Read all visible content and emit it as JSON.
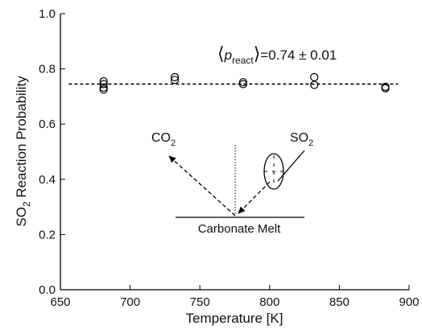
{
  "chart_data": {
    "type": "scatter",
    "x_label": "Temperature [K]",
    "y_label": {
      "prefix": "SO",
      "subscript": "2",
      "text": " Reaction Probability"
    },
    "xlim": [
      650,
      900
    ],
    "xticks": [
      650,
      700,
      750,
      800,
      850,
      900
    ],
    "ylim": [
      0,
      1
    ],
    "yticks": [
      {
        "value": 0,
        "label": "0.0"
      },
      {
        "value": 0.2,
        "label": "0.2"
      },
      {
        "value": 0.4,
        "label": "0.4"
      },
      {
        "value": 0.6,
        "label": "0.6"
      },
      {
        "value": 0.8,
        "label": "0.8"
      },
      {
        "value": 1,
        "label": "1.0"
      }
    ],
    "series": [
      {
        "x": [
          681,
          681,
          681,
          681,
          732,
          732,
          781,
          781,
          832,
          832,
          883,
          883
        ],
        "values": [
          0.755,
          0.745,
          0.732,
          0.725,
          0.77,
          0.76,
          0.752,
          0.745,
          0.77,
          0.742,
          0.735,
          0.73
        ],
        "color": "#000000"
      }
    ],
    "mean_line": {
      "x": [
        656,
        892
      ],
      "values": [
        0.745,
        0.745
      ],
      "color": "#000000"
    },
    "annotation": {
      "open": "⟨",
      "symbol": "p",
      "subscript": "react",
      "close": "⟩",
      "text": "=0.74 ± 0.01"
    },
    "inset": {
      "left_label": {
        "prefix": "CO",
        "subscript": "2"
      },
      "right_label": {
        "prefix": "SO",
        "subscript": "2"
      },
      "surface_label": "Carbonate Melt"
    }
  }
}
